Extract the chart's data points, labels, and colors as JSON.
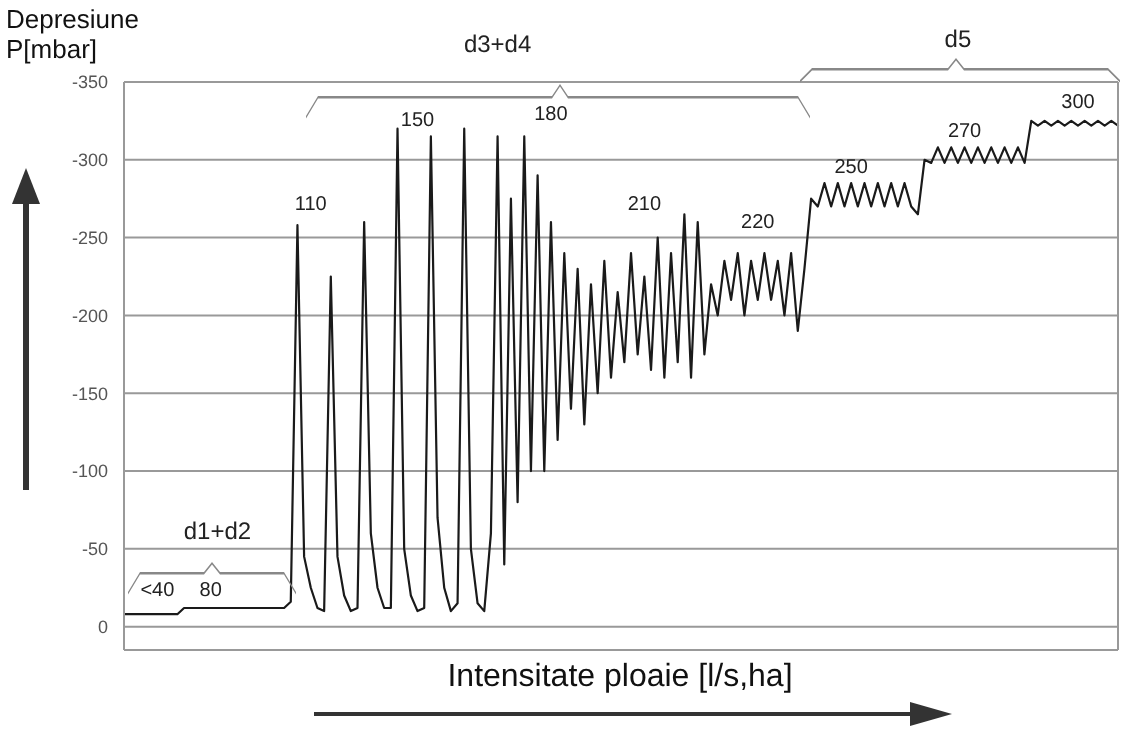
{
  "chart_data": {
    "type": "line",
    "ylabel": "Depresiune P[mbar]",
    "xlabel": "Intensitate ploaie [l/s,ha]",
    "categories": [
      null,
      null,
      null,
      null,
      null,
      null,
      null,
      null,
      null,
      null,
      null,
      null,
      null,
      null,
      null,
      null,
      null,
      null,
      null,
      null,
      null,
      null,
      null,
      null,
      null,
      null,
      null,
      null,
      null,
      null,
      null,
      null,
      null,
      null,
      null,
      null,
      null,
      null,
      null,
      null,
      null,
      null,
      null,
      null,
      null,
      null,
      null,
      null,
      null,
      null,
      null,
      null,
      null,
      null,
      null,
      null,
      null,
      null,
      null,
      null,
      null,
      null,
      null,
      null,
      null,
      null,
      null,
      null,
      null,
      null,
      null,
      null,
      null,
      null,
      null,
      null,
      null,
      null,
      null,
      null,
      null,
      null,
      null,
      null,
      null,
      null,
      null,
      null,
      null,
      null,
      null,
      null,
      null,
      null,
      null,
      null,
      null,
      null,
      null,
      null,
      null,
      null,
      null,
      null,
      null,
      null,
      null,
      null,
      null,
      null,
      null,
      null,
      null,
      null,
      null,
      null,
      null,
      null,
      null,
      null,
      null,
      null,
      null,
      null,
      null,
      null,
      null,
      null,
      null,
      null,
      null,
      null,
      null,
      null,
      null,
      null,
      null,
      null,
      null,
      null,
      null,
      null,
      null,
      null,
      null,
      null,
      null,
      null,
      null,
      null
    ],
    "series": [
      {
        "color": "#1a1a1a",
        "values": [
          -8,
          -8,
          -8,
          -8,
          -8,
          -8,
          -8,
          -8,
          -8,
          -12,
          -12,
          -12,
          -12,
          -12,
          -12,
          -12,
          -12,
          -12,
          -12,
          -12,
          -12,
          -12,
          -12,
          -12,
          -12,
          -16,
          -258,
          -45,
          -25,
          -12,
          -10,
          -225,
          -45,
          -20,
          -10,
          -12,
          -260,
          -60,
          -25,
          -12,
          -12,
          -320,
          -50,
          -20,
          -10,
          -12,
          -315,
          -70,
          -25,
          -10,
          -15,
          -320,
          -50,
          -15,
          -10,
          -60,
          -315,
          -40,
          -275,
          -80,
          -315,
          -100,
          -290,
          -100,
          -260,
          -120,
          -240,
          -140,
          -230,
          -130,
          -220,
          -150,
          -235,
          -160,
          -215,
          -170,
          -240,
          -175,
          -225,
          -165,
          -250,
          -160,
          -240,
          -170,
          -265,
          -160,
          -260,
          -175,
          -220,
          -200,
          -235,
          -210,
          -240,
          -200,
          -235,
          -210,
          -240,
          -210,
          -235,
          -200,
          -240,
          -190,
          -230,
          -275,
          -270,
          -285,
          -270,
          -285,
          -270,
          -285,
          -270,
          -285,
          -270,
          -285,
          -270,
          -285,
          -270,
          -285,
          -270,
          -265,
          -300,
          -298,
          -308,
          -298,
          -308,
          -298,
          -308,
          -298,
          -308,
          -298,
          -308,
          -298,
          -308,
          -298,
          -308,
          -298,
          -325,
          -322,
          -325,
          -322,
          -325,
          -322,
          -325,
          -322,
          -325,
          -322,
          -325,
          -322,
          -325,
          -322
        ]
      }
    ],
    "ylim": [
      15,
      -350
    ],
    "yticks": [
      0,
      -50,
      -100,
      -150,
      -200,
      -250,
      -300,
      -350
    ],
    "grid": "y",
    "tick_labels": "y",
    "marker": "none",
    "annotations": [
      "<40",
      "80",
      "110",
      "150",
      "180",
      "210",
      "220",
      "250",
      "270",
      "300",
      "d1+d2",
      "d3+d4",
      "d5"
    ]
  }
}
